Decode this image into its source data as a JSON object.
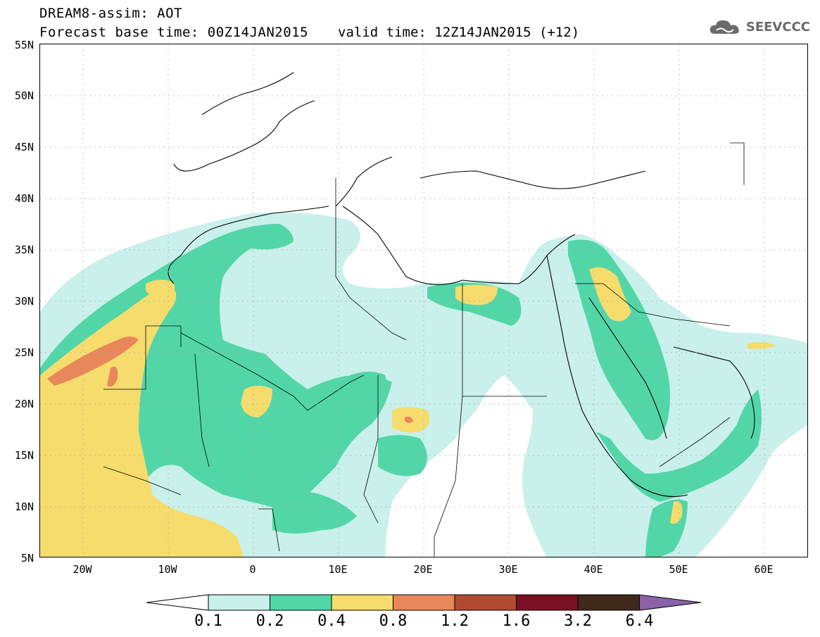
{
  "header": {
    "title_line1": "DREAM8-assim: AOT",
    "title_line2": "Forecast base time: 00Z14JAN2015",
    "valid_time": "valid time: 12Z14JAN2015 (+12)"
  },
  "logo": {
    "text": "SEEVCCC",
    "icon": "cloud-logo-icon"
  },
  "map": {
    "lat_labels": [
      "55N",
      "50N",
      "45N",
      "40N",
      "35N",
      "30N",
      "25N",
      "20N",
      "15N",
      "10N",
      "5N"
    ],
    "lon_labels": [
      "20W",
      "10W",
      "0",
      "10E",
      "20E",
      "30E",
      "40E",
      "50E",
      "60E"
    ]
  },
  "colorbar": {
    "labels": [
      "0.1",
      "0.2",
      "0.4",
      "0.8",
      "1.2",
      "1.6",
      "3.2",
      "6.4"
    ],
    "colors": [
      "#ffffff",
      "#c9f0ea",
      "#52d6a8",
      "#f5dc6c",
      "#e8875a",
      "#b14a32",
      "#7a1024",
      "#40291a",
      "#8b62a8"
    ]
  },
  "colors": {
    "aot_0_1": "#c9f0ea",
    "aot_0_2": "#52d6a8",
    "aot_0_4": "#f5dc6c",
    "aot_0_8": "#e8875a",
    "aot_1_2": "#b14a32"
  }
}
